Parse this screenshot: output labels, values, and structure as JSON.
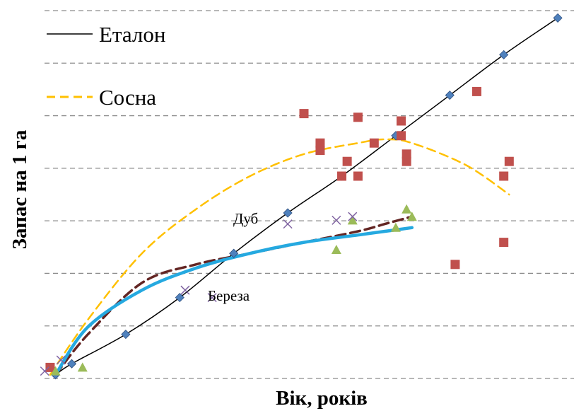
{
  "chart_data": {
    "type": "scatter",
    "xlabel": "Вік, років",
    "ylabel": "Запас на 1 га",
    "xlim": [
      0,
      100
    ],
    "ylim": [
      0,
      100
    ],
    "grid": true,
    "legend": "top-left",
    "legend_entries": [
      "Еталон",
      "Сосна"
    ],
    "annotations": [
      "Дуб",
      "Береза"
    ],
    "series": [
      {
        "name": "Еталон",
        "kind": "line+markers",
        "color": "#000000",
        "marker": "diamond",
        "marker_color": "#4F81BD",
        "x": [
          4,
          7,
          17,
          27,
          37,
          47,
          57,
          67,
          77,
          87,
          97
        ],
        "y": [
          1,
          4,
          12,
          22,
          34,
          45,
          55,
          66,
          77,
          88,
          98
        ]
      },
      {
        "name": "Сосна",
        "kind": "dashed-trend",
        "color": "#FFC000",
        "x": [
          3,
          10,
          20,
          30,
          40,
          50,
          60,
          65,
          70,
          80,
          88
        ],
        "y": [
          1,
          16,
          34,
          46,
          55,
          61,
          64,
          65,
          64,
          58,
          50
        ]
      },
      {
        "kind": "markers",
        "marker": "square",
        "marker_color": "#C0504D",
        "x": [
          3,
          50,
          53,
          53,
          57,
          58,
          60,
          60,
          63,
          68,
          68,
          69,
          69,
          78,
          82,
          87,
          87,
          88
        ],
        "y": [
          3,
          72,
          64,
          62,
          55,
          59,
          71,
          55,
          64,
          70,
          66,
          59,
          61,
          31,
          78,
          55,
          37,
          59
        ]
      },
      {
        "kind": "markers",
        "marker": "triangle",
        "marker_color": "#9BBB59",
        "x": [
          4,
          9,
          56,
          59,
          67,
          69,
          70
        ],
        "y": [
          2,
          3,
          35,
          43,
          41,
          46,
          44
        ]
      },
      {
        "kind": "markers",
        "marker": "x",
        "marker_color": "#8064A2",
        "x": [
          2,
          5,
          28,
          33,
          47,
          56,
          59
        ],
        "y": [
          2,
          5,
          24,
          22,
          42,
          43,
          44
        ]
      },
      {
        "kind": "dashed-trend",
        "color": "#632523",
        "x": [
          4,
          10,
          20,
          30,
          40,
          50,
          60,
          65,
          70
        ],
        "y": [
          1,
          12,
          26,
          31,
          34,
          37,
          40,
          42,
          44
        ]
      },
      {
        "kind": "solid-trend",
        "color": "#25A9E0",
        "x": [
          4,
          10,
          20,
          30,
          40,
          50,
          60,
          65,
          70
        ],
        "y": [
          1,
          14,
          24,
          30,
          34,
          37,
          39,
          40,
          41
        ]
      }
    ]
  }
}
